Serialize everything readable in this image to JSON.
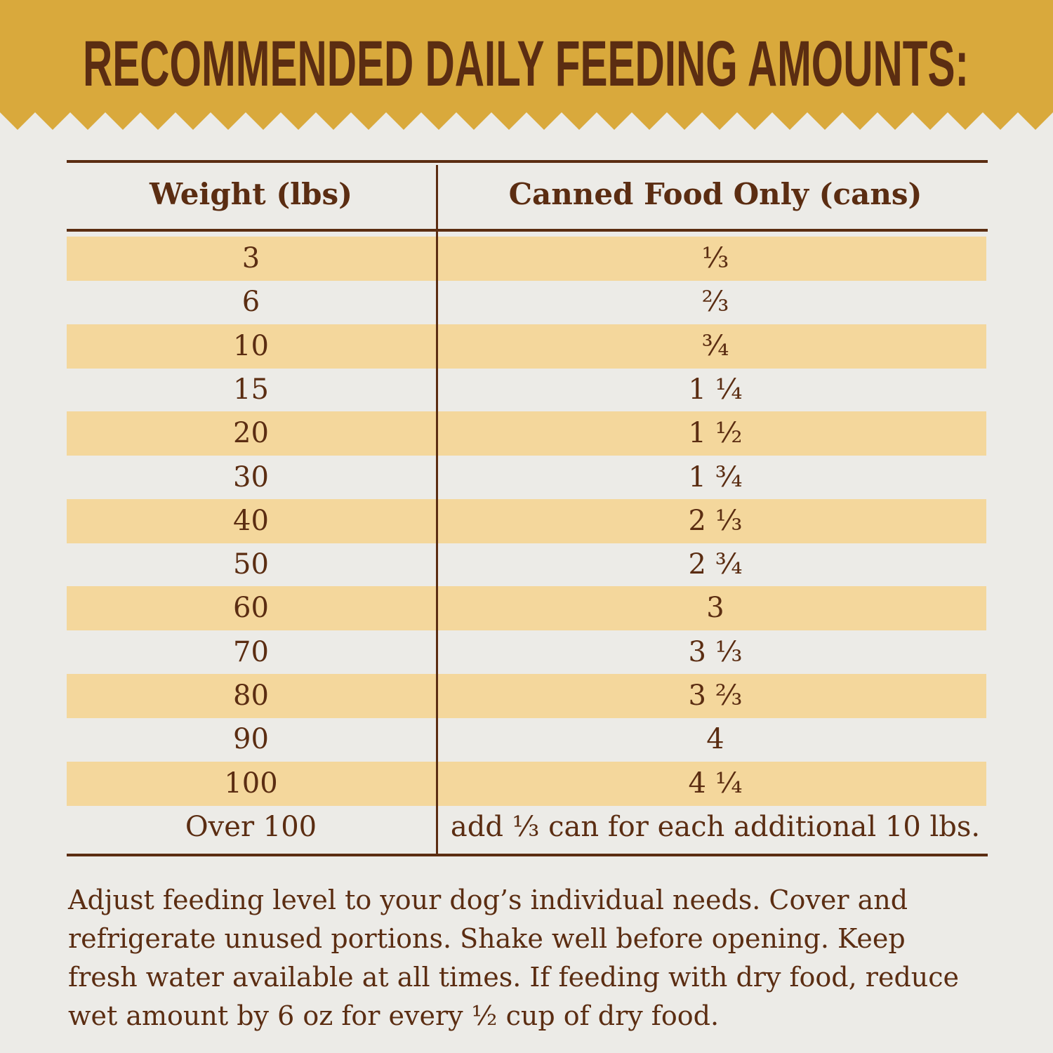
{
  "header": {
    "title": "RECOMMENDED DAILY FEEDING AMOUNTS:"
  },
  "table": {
    "columns": [
      "Weight (lbs)",
      "Canned Food Only (cans)"
    ],
    "rows": [
      [
        "3",
        "⅓"
      ],
      [
        "6",
        "⅔"
      ],
      [
        "10",
        "¾"
      ],
      [
        "15",
        "1 ¼"
      ],
      [
        "20",
        "1 ½"
      ],
      [
        "30",
        "1 ¾"
      ],
      [
        "40",
        "2 ⅓"
      ],
      [
        "50",
        "2 ¾"
      ],
      [
        "60",
        "3"
      ],
      [
        "70",
        "3 ⅓"
      ],
      [
        "80",
        "3 ⅔"
      ],
      [
        "90",
        "4"
      ],
      [
        "100",
        "4 ¼"
      ],
      [
        "Over 100",
        "add ⅓ can for each additional 10 lbs."
      ]
    ]
  },
  "note": "Adjust feeding level to your dog’s individual needs. Cover and refrigerate unused portions. Shake well before opening. Keep fresh water available at all times. If feeding with dry food, reduce wet amount by 6 oz for every ½ cup of dry food."
}
